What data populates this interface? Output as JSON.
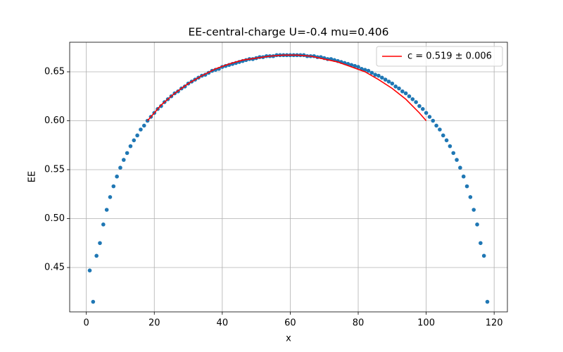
{
  "chart_data": {
    "type": "scatter",
    "title": "EE-central-charge U=-0.4 mu=0.406",
    "xlabel": "x",
    "ylabel": "EE",
    "xlim": [
      -4.9,
      123.9
    ],
    "ylim": [
      0.4047,
      0.6802
    ],
    "xticks": [
      0,
      20,
      40,
      60,
      80,
      100,
      120
    ],
    "yticks": [
      0.45,
      {
        "value": 0.5,
        "label": "0.50"
      },
      0.55,
      {
        "value": 0.6,
        "label": "0.60"
      },
      0.65
    ],
    "grid": true,
    "legend": "upper right",
    "series": [
      {
        "type": "scatter",
        "color": "#1f77b4",
        "x": [
          1,
          2,
          3,
          4,
          5,
          6,
          7,
          8,
          9,
          10,
          11,
          12,
          13,
          14,
          15,
          16,
          17,
          18,
          19,
          20,
          21,
          22,
          23,
          24,
          25,
          26,
          27,
          28,
          29,
          30,
          31,
          32,
          33,
          34,
          35,
          36,
          37,
          38,
          39,
          40,
          41,
          42,
          43,
          44,
          45,
          46,
          47,
          48,
          49,
          50,
          51,
          52,
          53,
          54,
          55,
          56,
          57,
          58,
          59,
          60,
          61,
          62,
          63,
          64,
          65,
          66,
          67,
          68,
          69,
          70,
          71,
          72,
          73,
          74,
          75,
          76,
          77,
          78,
          79,
          80,
          81,
          82,
          83,
          84,
          85,
          86,
          87,
          88,
          89,
          90,
          91,
          92,
          93,
          94,
          95,
          96,
          97,
          98,
          99,
          100,
          101,
          102,
          103,
          104,
          105,
          106,
          107,
          108,
          109,
          110,
          111,
          112,
          113,
          114,
          115,
          116,
          117,
          118
        ],
        "values": [
          0.447,
          0.415,
          0.462,
          0.475,
          0.494,
          0.509,
          0.522,
          0.533,
          0.543,
          0.552,
          0.56,
          0.567,
          0.574,
          0.58,
          0.585,
          0.591,
          0.595,
          0.6,
          0.604,
          0.608,
          0.612,
          0.615,
          0.619,
          0.622,
          0.625,
          0.628,
          0.63,
          0.633,
          0.635,
          0.638,
          0.64,
          0.642,
          0.644,
          0.646,
          0.647,
          0.649,
          0.651,
          0.652,
          0.653,
          0.655,
          0.656,
          0.657,
          0.658,
          0.659,
          0.66,
          0.661,
          0.662,
          0.663,
          0.663,
          0.664,
          0.665,
          0.665,
          0.666,
          0.666,
          0.666,
          0.667,
          0.667,
          0.667,
          0.667,
          0.667,
          0.667,
          0.667,
          0.667,
          0.667,
          0.666,
          0.666,
          0.666,
          0.665,
          0.665,
          0.664,
          0.663,
          0.663,
          0.662,
          0.661,
          0.66,
          0.659,
          0.658,
          0.657,
          0.656,
          0.655,
          0.653,
          0.652,
          0.651,
          0.649,
          0.647,
          0.646,
          0.644,
          0.642,
          0.64,
          0.638,
          0.635,
          0.633,
          0.63,
          0.628,
          0.625,
          0.622,
          0.619,
          0.615,
          0.612,
          0.608,
          0.604,
          0.6,
          0.595,
          0.591,
          0.585,
          0.58,
          0.574,
          0.567,
          0.56,
          0.552,
          0.543,
          0.533,
          0.522,
          0.509,
          0.494,
          0.475,
          0.462,
          0.415
        ]
      },
      {
        "type": "line",
        "name": "c = 0.519 ± 0.006",
        "color": "#ff0000",
        "x": [
          18,
          22,
          26,
          30,
          34,
          38,
          42,
          46,
          50,
          54,
          58,
          62,
          66,
          70,
          74,
          78,
          82,
          86,
          90,
          94,
          98,
          100
        ],
        "values": [
          0.6,
          0.616,
          0.628,
          0.638,
          0.646,
          0.653,
          0.658,
          0.662,
          0.664,
          0.666,
          0.667,
          0.667,
          0.666,
          0.663,
          0.66,
          0.655,
          0.65,
          0.642,
          0.633,
          0.622,
          0.608,
          0.6
        ]
      }
    ]
  }
}
